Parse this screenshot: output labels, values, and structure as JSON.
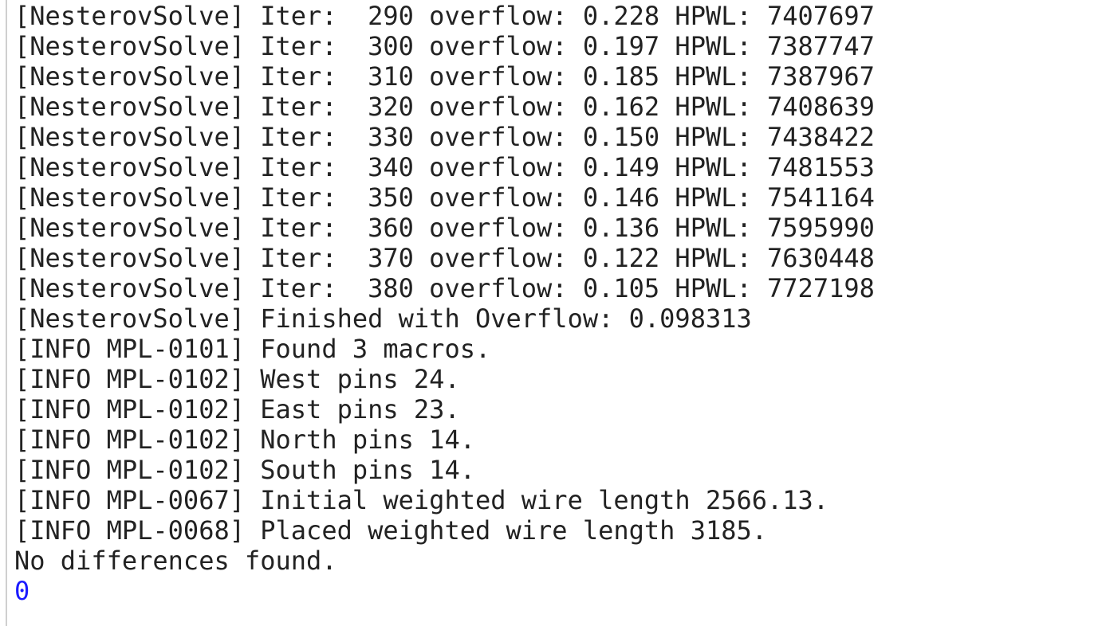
{
  "console": {
    "lines": [
      "[NesterovSolve] Iter:  290 overflow: 0.228 HPWL: 7407697",
      "[NesterovSolve] Iter:  300 overflow: 0.197 HPWL: 7387747",
      "[NesterovSolve] Iter:  310 overflow: 0.185 HPWL: 7387967",
      "[NesterovSolve] Iter:  320 overflow: 0.162 HPWL: 7408639",
      "[NesterovSolve] Iter:  330 overflow: 0.150 HPWL: 7438422",
      "[NesterovSolve] Iter:  340 overflow: 0.149 HPWL: 7481553",
      "[NesterovSolve] Iter:  350 overflow: 0.146 HPWL: 7541164",
      "[NesterovSolve] Iter:  360 overflow: 0.136 HPWL: 7595990",
      "[NesterovSolve] Iter:  370 overflow: 0.122 HPWL: 7630448",
      "[NesterovSolve] Iter:  380 overflow: 0.105 HPWL: 7727198",
      "[NesterovSolve] Finished with Overflow: 0.098313",
      "[INFO MPL-0101] Found 3 macros.",
      "[INFO MPL-0102] West pins 24.",
      "[INFO MPL-0102] East pins 23.",
      "[INFO MPL-0102] North pins 14.",
      "[INFO MPL-0102] South pins 14.",
      "[INFO MPL-0067] Initial weighted wire length 2566.13.",
      "[INFO MPL-0068] Placed weighted wire length 3185.",
      "No differences found."
    ],
    "result": "0"
  }
}
